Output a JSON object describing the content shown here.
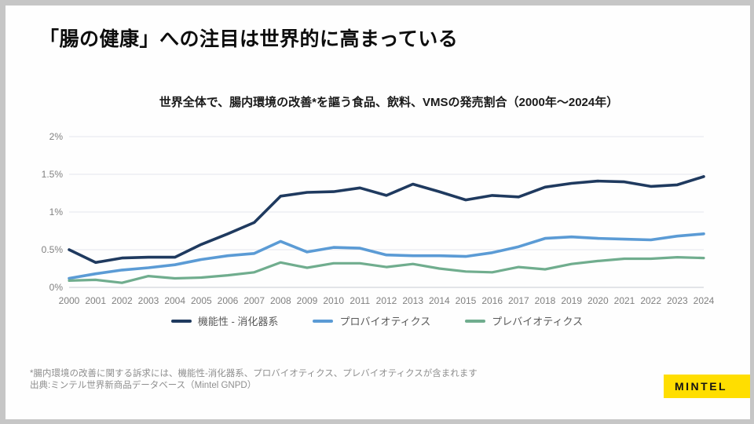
{
  "slide": {
    "title": "「腸の健康」への注目は世界的に高まっている",
    "footnote_line1": "*腸内環境の改善に関する訴求には、機能性-消化器系、プロバイオティクス、プレバイオティクスが含まれます",
    "footnote_line2": "出典:ミンテル世界新商品データベース（Mintel GNPD）",
    "logo_text": "MINTEL",
    "logo_bg": "#FFDE00"
  },
  "chart_data": {
    "type": "line",
    "title": "世界全体で、腸内環境の改善*を謳う食品、飲料、VMSの発売割合（2000年～2024年）",
    "x": [
      2000,
      2001,
      2002,
      2003,
      2004,
      2005,
      2006,
      2007,
      2008,
      2009,
      2010,
      2011,
      2012,
      2013,
      2014,
      2015,
      2016,
      2017,
      2018,
      2019,
      2020,
      2021,
      2022,
      2023,
      2024
    ],
    "series": [
      {
        "id": "functional-digestive",
        "name": "機能性 - 消化器系",
        "color": "#1f3a5f",
        "values": [
          0.5,
          0.33,
          0.39,
          0.4,
          0.4,
          0.57,
          0.71,
          0.86,
          1.21,
          1.26,
          1.27,
          1.32,
          1.22,
          1.37,
          1.27,
          1.16,
          1.22,
          1.2,
          1.33,
          1.38,
          1.41,
          1.4,
          1.34,
          1.36,
          1.47
        ]
      },
      {
        "id": "probiotics",
        "name": "プロバイオティクス",
        "color": "#5b9bd5",
        "values": [
          0.12,
          0.18,
          0.23,
          0.26,
          0.3,
          0.37,
          0.42,
          0.45,
          0.61,
          0.47,
          0.53,
          0.52,
          0.43,
          0.42,
          0.42,
          0.41,
          0.46,
          0.54,
          0.65,
          0.67,
          0.65,
          0.64,
          0.63,
          0.68,
          0.71
        ]
      },
      {
        "id": "prebiotics",
        "name": "プレバイオティクス",
        "color": "#70ad8e",
        "values": [
          0.09,
          0.1,
          0.06,
          0.15,
          0.12,
          0.13,
          0.16,
          0.2,
          0.33,
          0.26,
          0.32,
          0.32,
          0.27,
          0.31,
          0.25,
          0.21,
          0.2,
          0.27,
          0.24,
          0.31,
          0.35,
          0.38,
          0.38,
          0.4,
          0.39
        ]
      }
    ],
    "ylim": [
      0,
      2
    ],
    "yticks": [
      "0%",
      "0.5%",
      "1%",
      "1.5%",
      "2%"
    ],
    "grid": true,
    "legend_position": "bottom",
    "tick_color": "#808080",
    "gridline_color": "#e4e7ed",
    "axisline_color": "#c7cbd1"
  }
}
